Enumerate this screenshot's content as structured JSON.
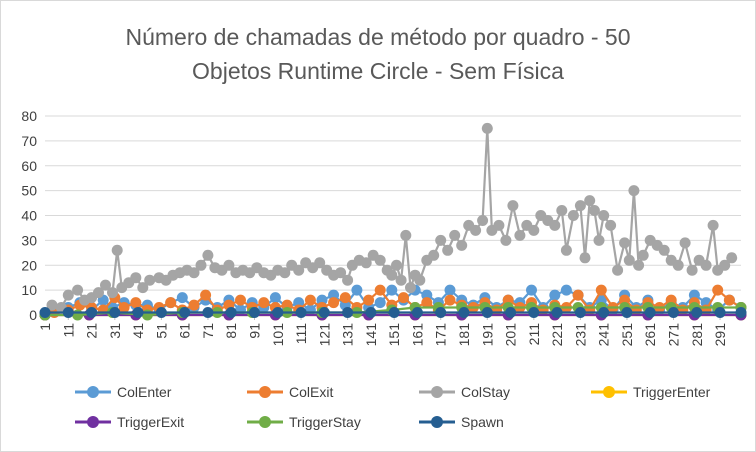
{
  "chart_data": {
    "type": "line",
    "title": [
      "Número de chamadas de método por quadro - 50",
      "Objetos Runtime Circle - Sem Física"
    ],
    "xlabel": "",
    "ylabel": "",
    "xlim": [
      1,
      300
    ],
    "ylim": [
      0,
      80
    ],
    "y_ticks": [
      0,
      10,
      20,
      30,
      40,
      50,
      60,
      70,
      80
    ],
    "x_tick_labels": [
      "1",
      "11",
      "21",
      "31",
      "41",
      "51",
      "61",
      "71",
      "81",
      "91",
      "101",
      "111",
      "121",
      "131",
      "141",
      "151",
      "161",
      "171",
      "181",
      "191",
      "201",
      "211",
      "221",
      "231",
      "241",
      "251",
      "261",
      "271",
      "281",
      "291"
    ],
    "grid": "horizontal",
    "legend_position": "bottom",
    "series": [
      {
        "name": "ColEnter",
        "color": "#5b9bd5",
        "points": [
          [
            1,
            0
          ],
          [
            5,
            2
          ],
          [
            11,
            3
          ],
          [
            16,
            5
          ],
          [
            21,
            2
          ],
          [
            26,
            6
          ],
          [
            30,
            3
          ],
          [
            35,
            5
          ],
          [
            40,
            4
          ],
          [
            45,
            4
          ],
          [
            50,
            2
          ],
          [
            55,
            5
          ],
          [
            60,
            7
          ],
          [
            65,
            3
          ],
          [
            70,
            6
          ],
          [
            75,
            3
          ],
          [
            80,
            6
          ],
          [
            85,
            2
          ],
          [
            90,
            5
          ],
          [
            95,
            3
          ],
          [
            100,
            7
          ],
          [
            105,
            3
          ],
          [
            110,
            5
          ],
          [
            115,
            2
          ],
          [
            120,
            6
          ],
          [
            125,
            8
          ],
          [
            130,
            4
          ],
          [
            135,
            10
          ],
          [
            140,
            3
          ],
          [
            145,
            5
          ],
          [
            150,
            10
          ],
          [
            155,
            6
          ],
          [
            160,
            10
          ],
          [
            165,
            8
          ],
          [
            170,
            5
          ],
          [
            175,
            10
          ],
          [
            180,
            6
          ],
          [
            185,
            4
          ],
          [
            190,
            7
          ],
          [
            195,
            3
          ],
          [
            200,
            6
          ],
          [
            205,
            5
          ],
          [
            210,
            10
          ],
          [
            215,
            3
          ],
          [
            220,
            8
          ],
          [
            225,
            10
          ],
          [
            230,
            8
          ],
          [
            235,
            3
          ],
          [
            240,
            6
          ],
          [
            245,
            2
          ],
          [
            250,
            8
          ],
          [
            255,
            3
          ],
          [
            260,
            6
          ],
          [
            265,
            2
          ],
          [
            270,
            5
          ],
          [
            275,
            3
          ],
          [
            280,
            8
          ],
          [
            285,
            5
          ],
          [
            290,
            2
          ],
          [
            295,
            6
          ],
          [
            300,
            3
          ]
        ]
      },
      {
        "name": "ColExit",
        "color": "#ed7d31",
        "points": [
          [
            1,
            0
          ],
          [
            5,
            1
          ],
          [
            11,
            2
          ],
          [
            16,
            4
          ],
          [
            21,
            3
          ],
          [
            26,
            2
          ],
          [
            31,
            7
          ],
          [
            35,
            3
          ],
          [
            40,
            5
          ],
          [
            45,
            2
          ],
          [
            50,
            3
          ],
          [
            55,
            5
          ],
          [
            60,
            2
          ],
          [
            65,
            4
          ],
          [
            70,
            8
          ],
          [
            75,
            2
          ],
          [
            80,
            4
          ],
          [
            85,
            6
          ],
          [
            90,
            3
          ],
          [
            95,
            5
          ],
          [
            100,
            3
          ],
          [
            105,
            4
          ],
          [
            110,
            2
          ],
          [
            115,
            6
          ],
          [
            120,
            3
          ],
          [
            125,
            5
          ],
          [
            130,
            7
          ],
          [
            135,
            3
          ],
          [
            140,
            6
          ],
          [
            145,
            10
          ],
          [
            150,
            4
          ],
          [
            155,
            7
          ],
          [
            160,
            3
          ],
          [
            165,
            5
          ],
          [
            170,
            2
          ],
          [
            175,
            6
          ],
          [
            180,
            4
          ],
          [
            185,
            3
          ],
          [
            190,
            5
          ],
          [
            195,
            2
          ],
          [
            200,
            6
          ],
          [
            205,
            3
          ],
          [
            210,
            5
          ],
          [
            215,
            2
          ],
          [
            220,
            4
          ],
          [
            225,
            3
          ],
          [
            230,
            8
          ],
          [
            235,
            2
          ],
          [
            240,
            10
          ],
          [
            245,
            3
          ],
          [
            250,
            6
          ],
          [
            255,
            2
          ],
          [
            260,
            5
          ],
          [
            265,
            3
          ],
          [
            270,
            6
          ],
          [
            275,
            2
          ],
          [
            280,
            5
          ],
          [
            285,
            2
          ],
          [
            290,
            10
          ],
          [
            295,
            6
          ],
          [
            300,
            3
          ]
        ]
      },
      {
        "name": "ColStay",
        "color": "#a5a5a5",
        "points": [
          [
            1,
            0
          ],
          [
            4,
            4
          ],
          [
            8,
            3
          ],
          [
            11,
            8
          ],
          [
            15,
            10
          ],
          [
            18,
            6
          ],
          [
            21,
            7
          ],
          [
            24,
            9
          ],
          [
            27,
            12
          ],
          [
            30,
            9
          ],
          [
            32,
            26
          ],
          [
            34,
            11
          ],
          [
            37,
            13
          ],
          [
            40,
            15
          ],
          [
            43,
            11
          ],
          [
            46,
            14
          ],
          [
            50,
            15
          ],
          [
            53,
            14
          ],
          [
            56,
            16
          ],
          [
            59,
            17
          ],
          [
            62,
            18
          ],
          [
            65,
            17
          ],
          [
            68,
            20
          ],
          [
            71,
            24
          ],
          [
            74,
            19
          ],
          [
            77,
            18
          ],
          [
            80,
            20
          ],
          [
            83,
            17
          ],
          [
            86,
            18
          ],
          [
            89,
            17
          ],
          [
            92,
            19
          ],
          [
            95,
            17
          ],
          [
            98,
            16
          ],
          [
            101,
            18
          ],
          [
            104,
            17
          ],
          [
            107,
            20
          ],
          [
            110,
            18
          ],
          [
            113,
            21
          ],
          [
            116,
            19
          ],
          [
            119,
            21
          ],
          [
            122,
            18
          ],
          [
            125,
            16
          ],
          [
            128,
            17
          ],
          [
            131,
            14
          ],
          [
            133,
            20
          ],
          [
            136,
            22
          ],
          [
            139,
            21
          ],
          [
            142,
            24
          ],
          [
            145,
            22
          ],
          [
            148,
            18
          ],
          [
            150,
            16
          ],
          [
            152,
            20
          ],
          [
            154,
            14
          ],
          [
            156,
            32
          ],
          [
            158,
            11
          ],
          [
            160,
            16
          ],
          [
            162,
            14
          ],
          [
            165,
            22
          ],
          [
            168,
            24
          ],
          [
            171,
            30
          ],
          [
            174,
            26
          ],
          [
            177,
            32
          ],
          [
            180,
            28
          ],
          [
            183,
            36
          ],
          [
            186,
            34
          ],
          [
            189,
            38
          ],
          [
            191,
            75
          ],
          [
            193,
            34
          ],
          [
            196,
            36
          ],
          [
            199,
            30
          ],
          [
            202,
            44
          ],
          [
            205,
            32
          ],
          [
            208,
            36
          ],
          [
            211,
            34
          ],
          [
            214,
            40
          ],
          [
            217,
            38
          ],
          [
            220,
            36
          ],
          [
            223,
            42
          ],
          [
            225,
            26
          ],
          [
            228,
            40
          ],
          [
            231,
            44
          ],
          [
            233,
            23
          ],
          [
            235,
            46
          ],
          [
            237,
            42
          ],
          [
            239,
            30
          ],
          [
            241,
            40
          ],
          [
            244,
            36
          ],
          [
            247,
            18
          ],
          [
            250,
            29
          ],
          [
            252,
            22
          ],
          [
            254,
            50
          ],
          [
            256,
            20
          ],
          [
            258,
            24
          ],
          [
            261,
            30
          ],
          [
            264,
            28
          ],
          [
            267,
            26
          ],
          [
            270,
            22
          ],
          [
            273,
            20
          ],
          [
            276,
            29
          ],
          [
            279,
            18
          ],
          [
            282,
            22
          ],
          [
            285,
            20
          ],
          [
            288,
            36
          ],
          [
            290,
            18
          ],
          [
            293,
            20
          ],
          [
            296,
            23
          ]
        ]
      },
      {
        "name": "TriggerEnter",
        "color": "#ffc000",
        "points": [
          [
            1,
            0
          ],
          [
            20,
            0
          ],
          [
            40,
            0
          ],
          [
            60,
            0
          ],
          [
            80,
            0
          ],
          [
            100,
            0
          ],
          [
            120,
            0
          ],
          [
            140,
            0
          ],
          [
            160,
            0
          ],
          [
            180,
            0
          ],
          [
            200,
            0
          ],
          [
            220,
            0
          ],
          [
            240,
            0
          ],
          [
            260,
            0
          ],
          [
            280,
            0
          ],
          [
            300,
            0
          ]
        ]
      },
      {
        "name": "TriggerExit",
        "color": "#7030a0",
        "points": [
          [
            1,
            0
          ],
          [
            20,
            0
          ],
          [
            40,
            0
          ],
          [
            60,
            0
          ],
          [
            80,
            0
          ],
          [
            100,
            0
          ],
          [
            120,
            0
          ],
          [
            140,
            0
          ],
          [
            160,
            0
          ],
          [
            180,
            0
          ],
          [
            200,
            0
          ],
          [
            220,
            0
          ],
          [
            240,
            0
          ],
          [
            260,
            0
          ],
          [
            280,
            0
          ],
          [
            300,
            0
          ]
        ]
      },
      {
        "name": "TriggerStay",
        "color": "#70ad47",
        "points": [
          [
            1,
            0
          ],
          [
            15,
            0
          ],
          [
            30,
            1
          ],
          [
            45,
            0
          ],
          [
            60,
            1
          ],
          [
            75,
            1
          ],
          [
            90,
            1
          ],
          [
            105,
            1
          ],
          [
            120,
            1
          ],
          [
            135,
            1
          ],
          [
            150,
            2
          ],
          [
            160,
            3
          ],
          [
            170,
            3
          ],
          [
            180,
            3
          ],
          [
            190,
            3
          ],
          [
            200,
            3
          ],
          [
            210,
            3
          ],
          [
            220,
            3
          ],
          [
            230,
            3
          ],
          [
            240,
            3
          ],
          [
            250,
            3
          ],
          [
            260,
            3
          ],
          [
            270,
            3
          ],
          [
            280,
            3
          ],
          [
            290,
            3
          ],
          [
            300,
            3
          ]
        ]
      },
      {
        "name": "Spawn",
        "color": "#255e91",
        "points": [
          [
            1,
            1
          ],
          [
            11,
            1
          ],
          [
            21,
            1
          ],
          [
            31,
            1
          ],
          [
            41,
            1
          ],
          [
            51,
            1
          ],
          [
            61,
            1
          ],
          [
            71,
            1
          ],
          [
            81,
            1
          ],
          [
            91,
            1
          ],
          [
            101,
            1
          ],
          [
            111,
            1
          ],
          [
            121,
            1
          ],
          [
            131,
            1
          ],
          [
            141,
            1
          ],
          [
            151,
            1
          ],
          [
            161,
            1
          ],
          [
            171,
            1
          ],
          [
            181,
            1
          ],
          [
            191,
            1
          ],
          [
            201,
            1
          ],
          [
            211,
            1
          ],
          [
            221,
            1
          ],
          [
            231,
            1
          ],
          [
            241,
            1
          ],
          [
            251,
            1
          ],
          [
            261,
            1
          ],
          [
            271,
            1
          ],
          [
            281,
            1
          ],
          [
            291,
            1
          ],
          [
            300,
            1
          ]
        ]
      }
    ]
  }
}
